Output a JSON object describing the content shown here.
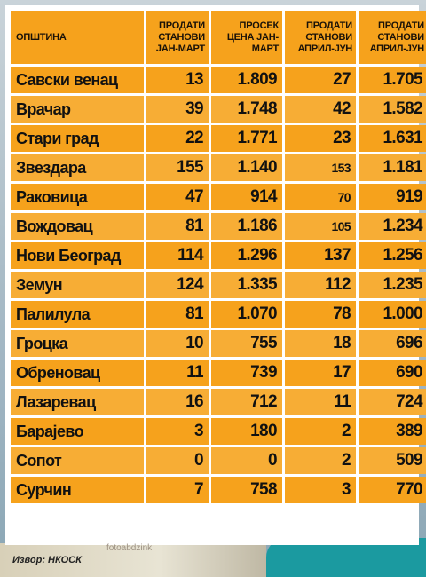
{
  "table": {
    "headers": [
      "ОПШТИНА",
      "ПРОДАТИ СТАНОВИ ЈАН-МАРТ",
      "ПРОСЕК ЦЕНА ЈАН-МАРТ",
      "ПРОДАТИ СТАНОВИ АПРИЛ-ЈУН",
      "ПРОДАТИ СТАНОВИ АПРИЛ-ЈУН"
    ],
    "rows": [
      [
        "Савски венац",
        "13",
        "1.809",
        "27",
        "1.705"
      ],
      [
        "Врачар",
        "39",
        "1.748",
        "42",
        "1.582"
      ],
      [
        "Стари град",
        "22",
        "1.771",
        "23",
        "1.631"
      ],
      [
        "Звездара",
        "155",
        "1.140",
        "153",
        "1.181"
      ],
      [
        "Раковица",
        "47",
        "914",
        "70",
        "919"
      ],
      [
        "Вождовац",
        "81",
        "1.186",
        "105",
        "1.234"
      ],
      [
        "Нови Београд",
        "114",
        "1.296",
        "137",
        "1.256"
      ],
      [
        "Земун",
        "124",
        "1.335",
        "112",
        "1.235"
      ],
      [
        "Палилула",
        "81",
        "1.070",
        "78",
        "1.000"
      ],
      [
        "Гроцка",
        "10",
        "755",
        "18",
        "696"
      ],
      [
        "Обреновац",
        "11",
        "739",
        "17",
        "690"
      ],
      [
        "Лазаревац",
        "16",
        "712",
        "11",
        "724"
      ],
      [
        "Барајево",
        "3",
        "180",
        "2",
        "389"
      ],
      [
        "Сопот",
        "0",
        "0",
        "2",
        "509"
      ],
      [
        "Сурчин",
        "7",
        "758",
        "3",
        "770"
      ]
    ]
  },
  "source": "Извор: НКОСК",
  "watermark": "fotoabdzink"
}
